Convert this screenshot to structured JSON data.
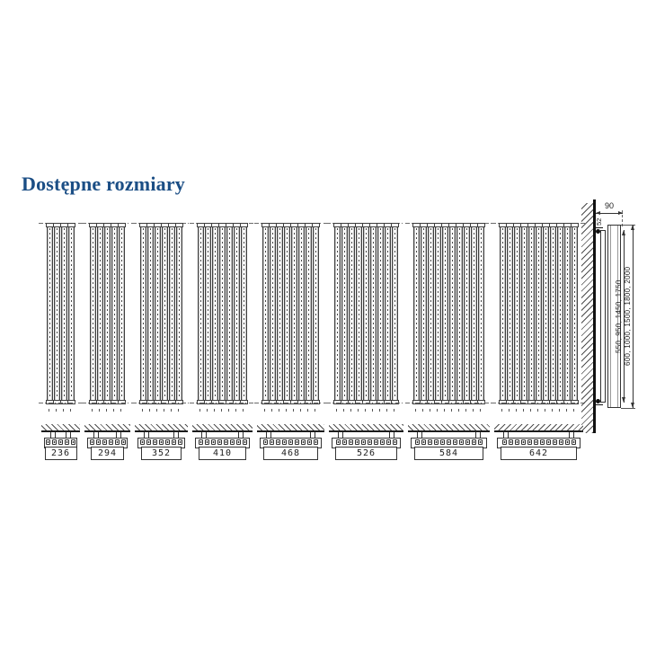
{
  "page": {
    "title": "Dostępne rozmiary"
  },
  "colors": {
    "title_accent": "#1b4e85",
    "drawing_line": "#3f3f3f"
  },
  "radiators": [
    {
      "width_label": "236",
      "tubes": 4
    },
    {
      "width_label": "294",
      "tubes": 5
    },
    {
      "width_label": "352",
      "tubes": 6
    },
    {
      "width_label": "410",
      "tubes": 7
    },
    {
      "width_label": "468",
      "tubes": 8
    },
    {
      "width_label": "526",
      "tubes": 9
    },
    {
      "width_label": "584",
      "tubes": 10
    },
    {
      "width_label": "642",
      "tubes": 11
    }
  ],
  "side_view": {
    "wall_offset_label": "90",
    "depth_label": "52",
    "mounting_heights_label": "550, 950, 1450, 1750",
    "total_heights_label": "600, 1000, 1500, 1800, 2000"
  }
}
